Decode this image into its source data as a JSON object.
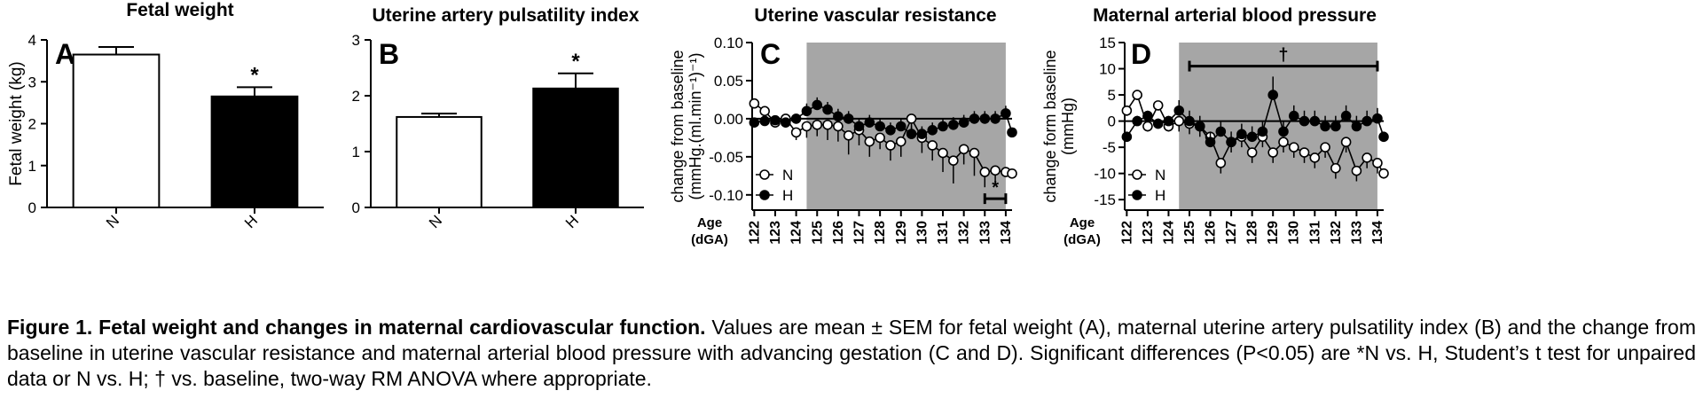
{
  "chart_data": [
    {
      "panel": "A",
      "type": "bar",
      "title": "Fetal weight",
      "ylabel": "Fetal weight (kg)",
      "xlabel": "",
      "ylim": [
        0,
        4
      ],
      "yticks": [
        "0",
        "1",
        "2",
        "3",
        "4"
      ],
      "categories": [
        "N",
        "H"
      ],
      "values": [
        3.65,
        2.65
      ],
      "errors": [
        0.18,
        0.22
      ],
      "fills": [
        "#ffffff",
        "#000000"
      ],
      "annotations": [
        "",
        "*"
      ]
    },
    {
      "panel": "B",
      "type": "bar",
      "title": "Uterine artery pulsatility index",
      "ylabel": "",
      "xlabel": "",
      "ylim": [
        0,
        3
      ],
      "yticks": [
        "0",
        "1",
        "2",
        "3"
      ],
      "categories": [
        "N",
        "H"
      ],
      "values": [
        1.62,
        2.13
      ],
      "errors": [
        0.06,
        0.27
      ],
      "fills": [
        "#ffffff",
        "#000000"
      ],
      "annotations": [
        "",
        "*"
      ]
    },
    {
      "panel": "C",
      "type": "line",
      "title": "Uterine vascular resistance",
      "ylabel_line1": "change from baseline",
      "ylabel_line2": "(mmHg.(ml.min⁻¹)⁻¹)",
      "xlabel_line1": "Age",
      "xlabel_line2": "(dGA)",
      "ylim": [
        -0.12,
        0.1
      ],
      "yticks": [
        "0.10",
        "0.05",
        "0.00",
        "-0.05",
        "-0.10"
      ],
      "ytick_values": [
        0.1,
        0.05,
        0.0,
        -0.05,
        -0.1
      ],
      "xlim": [
        121.9,
        134.3
      ],
      "xticks": [
        "122",
        "123",
        "124",
        "125",
        "126",
        "127",
        "128",
        "129",
        "130",
        "131",
        "132",
        "133",
        "134"
      ],
      "shaded_x": [
        124.5,
        134.0
      ],
      "legend_position": "bottom-left",
      "series": [
        {
          "name": "N",
          "marker": "open",
          "x": [
            122.0,
            122.5,
            123.0,
            123.5,
            124.0,
            124.5,
            125.0,
            125.5,
            126.0,
            126.5,
            127.0,
            127.5,
            128.0,
            128.5,
            129.0,
            129.5,
            130.0,
            130.5,
            131.0,
            131.5,
            132.0,
            132.5,
            133.0,
            133.5,
            134.0,
            134.3
          ],
          "y": [
            0.02,
            0.01,
            -0.005,
            0.0,
            -0.018,
            -0.01,
            -0.008,
            -0.008,
            -0.01,
            -0.022,
            -0.015,
            -0.03,
            -0.025,
            -0.035,
            -0.03,
            0.0,
            -0.025,
            -0.035,
            -0.045,
            -0.055,
            -0.04,
            -0.045,
            -0.07,
            -0.068,
            -0.07,
            -0.072
          ],
          "err": [
            0.005,
            0.005,
            0.005,
            0.005,
            0.01,
            0.015,
            0.015,
            0.02,
            0.02,
            0.025,
            0.02,
            0.02,
            0.015,
            0.02,
            0.02,
            0.015,
            0.02,
            0.02,
            0.025,
            0.03,
            0.02,
            0.03,
            0.02,
            0.015,
            0.005,
            0.005
          ]
        },
        {
          "name": "H",
          "marker": "filled",
          "x": [
            122.0,
            122.5,
            123.0,
            123.5,
            124.0,
            124.5,
            125.0,
            125.5,
            126.0,
            126.5,
            127.0,
            127.5,
            128.0,
            128.5,
            129.0,
            129.5,
            130.0,
            130.5,
            131.0,
            131.5,
            132.0,
            132.5,
            133.0,
            133.5,
            134.0,
            134.3
          ],
          "y": [
            -0.005,
            -0.003,
            -0.002,
            -0.005,
            0.0,
            0.01,
            0.018,
            0.012,
            0.003,
            0.0,
            -0.01,
            -0.005,
            -0.01,
            -0.015,
            -0.01,
            -0.02,
            -0.02,
            -0.015,
            -0.01,
            -0.008,
            -0.005,
            0.0,
            0.0,
            0.0,
            0.007,
            -0.018
          ],
          "err": [
            0.005,
            0.005,
            0.005,
            0.005,
            0.005,
            0.01,
            0.01,
            0.01,
            0.01,
            0.01,
            0.01,
            0.01,
            0.01,
            0.01,
            0.01,
            0.01,
            0.01,
            0.01,
            0.01,
            0.01,
            0.01,
            0.01,
            0.01,
            0.01,
            0.01,
            0.005
          ]
        }
      ],
      "sig_bar": {
        "x": [
          133.0,
          134.0
        ],
        "label": "*",
        "y": -0.105
      }
    },
    {
      "panel": "D",
      "type": "line",
      "title": "Maternal arterial blood pressure",
      "ylabel_line1": "change form baseline",
      "ylabel_line2": "(mmHg)",
      "xlabel_line1": "Age",
      "xlabel_line2": "(dGA)",
      "ylim": [
        -17,
        15
      ],
      "yticks": [
        "15",
        "10",
        "5",
        "0",
        "-5",
        "-10",
        "-15"
      ],
      "ytick_values": [
        15,
        10,
        5,
        0,
        -5,
        -10,
        -15
      ],
      "xlim": [
        121.9,
        134.3
      ],
      "xticks": [
        "122",
        "123",
        "124",
        "125",
        "126",
        "127",
        "128",
        "129",
        "130",
        "131",
        "132",
        "133",
        "134"
      ],
      "shaded_x": [
        124.5,
        134.0
      ],
      "legend_position": "bottom-left",
      "series": [
        {
          "name": "N",
          "marker": "open",
          "x": [
            122.0,
            122.5,
            123.0,
            123.5,
            124.0,
            124.5,
            125.0,
            125.5,
            126.0,
            126.5,
            127.0,
            127.5,
            128.0,
            128.5,
            129.0,
            129.5,
            130.0,
            130.5,
            131.0,
            131.5,
            132.0,
            132.5,
            133.0,
            133.5,
            134.0,
            134.3
          ],
          "y": [
            2.0,
            5.0,
            -1.0,
            3.0,
            -1.0,
            0.0,
            -0.5,
            -1.0,
            -3.0,
            -8.0,
            -4.0,
            -3.0,
            -6.0,
            -3.0,
            -6.0,
            -4.0,
            -5.0,
            -6.0,
            -7.0,
            -5.0,
            -9.0,
            -4.0,
            -9.5,
            -7.0,
            -8.0,
            -10.0
          ],
          "err": [
            1,
            1,
            1,
            1,
            1,
            2,
            2,
            2,
            2,
            2,
            2,
            2,
            2,
            2,
            2,
            2,
            2,
            2,
            2,
            2,
            2,
            2,
            2,
            2,
            2,
            1
          ]
        },
        {
          "name": "H",
          "marker": "filled",
          "x": [
            122.0,
            122.5,
            123.0,
            123.5,
            124.0,
            124.5,
            125.0,
            125.5,
            126.0,
            126.5,
            127.0,
            127.5,
            128.0,
            128.5,
            129.0,
            129.5,
            130.0,
            130.5,
            131.0,
            131.5,
            132.0,
            132.5,
            133.0,
            133.5,
            134.0,
            134.3
          ],
          "y": [
            -3.0,
            0.0,
            1.0,
            -0.5,
            0.0,
            2.0,
            0.0,
            -1.0,
            -4.0,
            -2.0,
            -4.0,
            -2.5,
            -3.0,
            -2.0,
            5.0,
            -2.0,
            1.0,
            0.0,
            0.0,
            -1.0,
            -1.0,
            1.0,
            -1.0,
            0.0,
            0.5,
            -3.0
          ],
          "err": [
            1,
            1,
            1,
            1,
            1,
            2,
            2,
            2,
            2,
            2,
            2,
            2,
            2,
            2,
            3.5,
            2,
            2,
            2,
            2,
            2,
            2,
            2,
            2,
            2,
            2,
            1
          ]
        }
      ],
      "sig_bar": {
        "x": [
          125.0,
          134.0
        ],
        "label": "†",
        "y": 10.5
      }
    }
  ],
  "caption": {
    "bold": "Figure 1. Fetal weight and changes in maternal cardiovascular function.",
    "text": " Values are mean ± SEM for fetal weight (A), maternal uterine artery pulsatility index (B) and the change from baseline in uterine vascular resistance and maternal arterial blood pressure with advancing gestation (C and D). Significant differences (P<0.05) are *N vs. H, Student’s t test for unpaired data or N vs. H; † vs. baseline, two-way RM ANOVA where appropriate."
  },
  "colors": {
    "shade": "#a6a6a6",
    "ink": "#000000",
    "paper": "#ffffff"
  }
}
